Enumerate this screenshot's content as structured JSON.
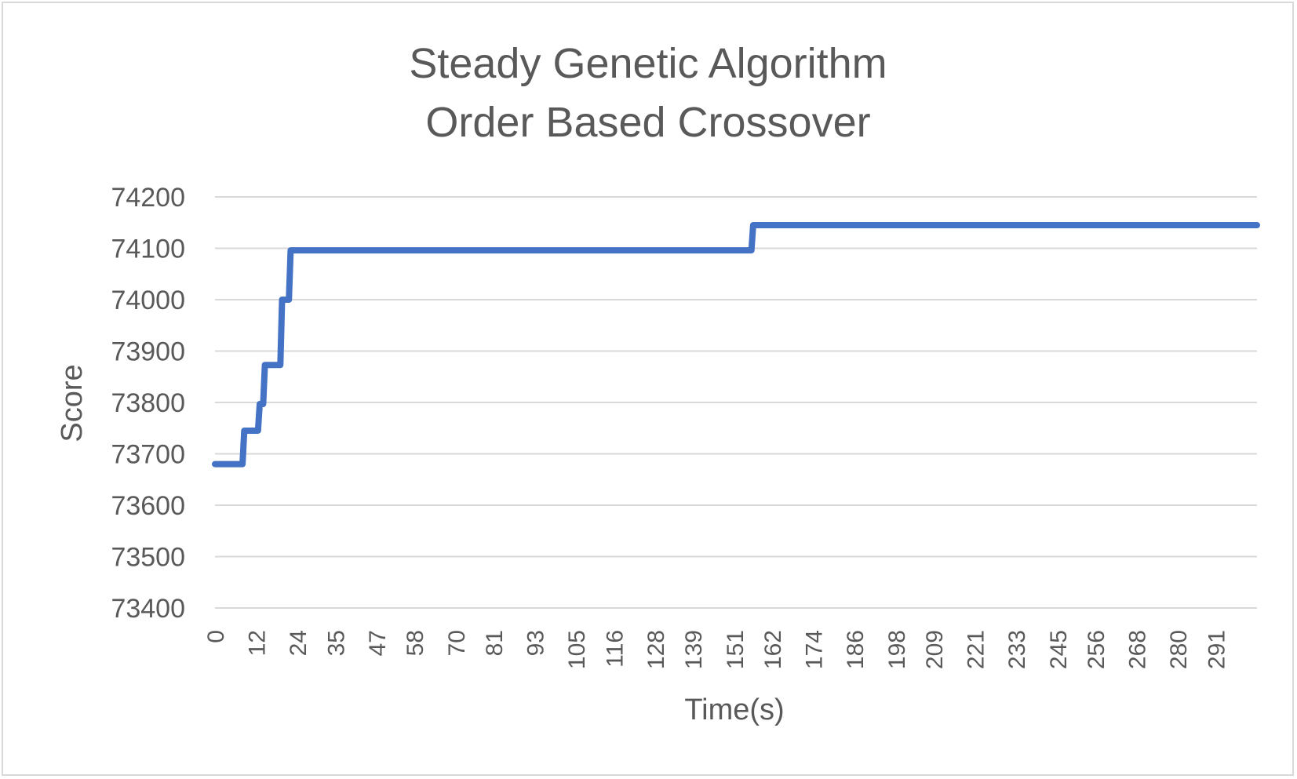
{
  "chart_data": {
    "type": "line",
    "title": "Steady Genetic Algorithm",
    "subtitle": "Order Based Crossover",
    "xlabel": "Time(s)",
    "ylabel": "Score",
    "ylim": [
      73400,
      74200
    ],
    "xlim": [
      0,
      303
    ],
    "yticks": [
      "73400",
      "73500",
      "73600",
      "73700",
      "73800",
      "73900",
      "74000",
      "74100",
      "74200"
    ],
    "xticks": [
      {
        "value": 0,
        "label": "0"
      },
      {
        "value": 12,
        "label": "12"
      },
      {
        "value": 24,
        "label": "24"
      },
      {
        "value": 35,
        "label": "35"
      },
      {
        "value": 47,
        "label": "47"
      },
      {
        "value": 58,
        "label": "58"
      },
      {
        "value": 70,
        "label": "70"
      },
      {
        "value": 81,
        "label": "81"
      },
      {
        "value": 93,
        "label": "93"
      },
      {
        "value": 105,
        "label": "105"
      },
      {
        "value": 116,
        "label": "116"
      },
      {
        "value": 128,
        "label": "128"
      },
      {
        "value": 139,
        "label": "139"
      },
      {
        "value": 151,
        "label": "151"
      },
      {
        "value": 162,
        "label": "162"
      },
      {
        "value": 174,
        "label": "174"
      },
      {
        "value": 186,
        "label": "186"
      },
      {
        "value": 198,
        "label": "198"
      },
      {
        "value": 209,
        "label": "209"
      },
      {
        "value": 221,
        "label": "221"
      },
      {
        "value": 233,
        "label": "233"
      },
      {
        "value": 245,
        "label": "245"
      },
      {
        "value": 256,
        "label": "256"
      },
      {
        "value": 268,
        "label": "268"
      },
      {
        "value": 280,
        "label": "280"
      },
      {
        "value": 291,
        "label": "291"
      }
    ],
    "grid": true,
    "legend": "none",
    "series": [
      {
        "color": "#4472c4",
        "points": [
          [
            0,
            73680
          ],
          [
            8,
            73680
          ],
          [
            8.5,
            73745
          ],
          [
            12.5,
            73745
          ],
          [
            13,
            73797
          ],
          [
            14,
            73797
          ],
          [
            14.5,
            73873
          ],
          [
            19,
            73873
          ],
          [
            19.5,
            74000
          ],
          [
            21.5,
            74000
          ],
          [
            22,
            74096
          ],
          [
            156,
            74096
          ],
          [
            156.5,
            74145
          ],
          [
            303,
            74145
          ]
        ]
      }
    ]
  }
}
